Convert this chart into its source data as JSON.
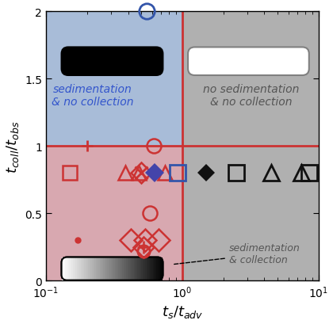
{
  "xlim": [
    0.1,
    10
  ],
  "ylim": [
    0,
    2.0
  ],
  "xlabel": "$t_s/t_{adv}$",
  "ylabel": "$t_{coll}/t_{obs}$",
  "bg_blue": "#a8bcd8",
  "bg_red": "#d8a8b0",
  "bg_gray": "#b0b0b0",
  "border_red": "#cc3333",
  "text_blue": "#3355cc",
  "text_gray": "#555555",
  "label_blue": "sedimentation\n& no collection",
  "label_gray": "no sedimentation\n& no collection",
  "annotation_text": "sedimentation\n& collection",
  "red_color": "#cc3333",
  "blue_color": "#3355aa",
  "purple_color": "#4444aa",
  "black_color": "#111111"
}
